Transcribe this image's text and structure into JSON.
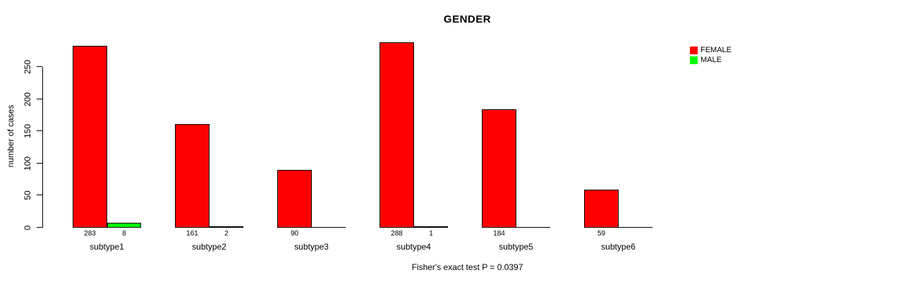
{
  "chart_data": {
    "type": "bar",
    "title": "GENDER",
    "xlabel": "",
    "ylabel": "number of cases",
    "categories": [
      "subtype1",
      "subtype2",
      "subtype3",
      "subtype4",
      "subtype5",
      "subtype6"
    ],
    "series": [
      {
        "name": "FEMALE",
        "color": "#ff0000",
        "values": [
          283,
          161,
          90,
          288,
          184,
          59
        ]
      },
      {
        "name": "MALE",
        "color": "#00ff00",
        "values": [
          8,
          2,
          0,
          1,
          0,
          0
        ]
      }
    ],
    "value_labels": {
      "FEMALE": [
        "283",
        "161",
        "90",
        "288",
        "184",
        "59"
      ],
      "MALE": [
        "8",
        "2",
        "",
        "1",
        "",
        ""
      ]
    },
    "yticks": [
      0,
      50,
      100,
      150,
      200,
      250
    ],
    "ylim": [
      0,
      290
    ],
    "grid": false,
    "legend_position": "top-right",
    "annotation": "Fisher's exact test P = 0.0397"
  },
  "colors": {
    "female": "#ff0000",
    "male": "#00ff00",
    "axis": "#000000",
    "background": "#ffffff"
  }
}
